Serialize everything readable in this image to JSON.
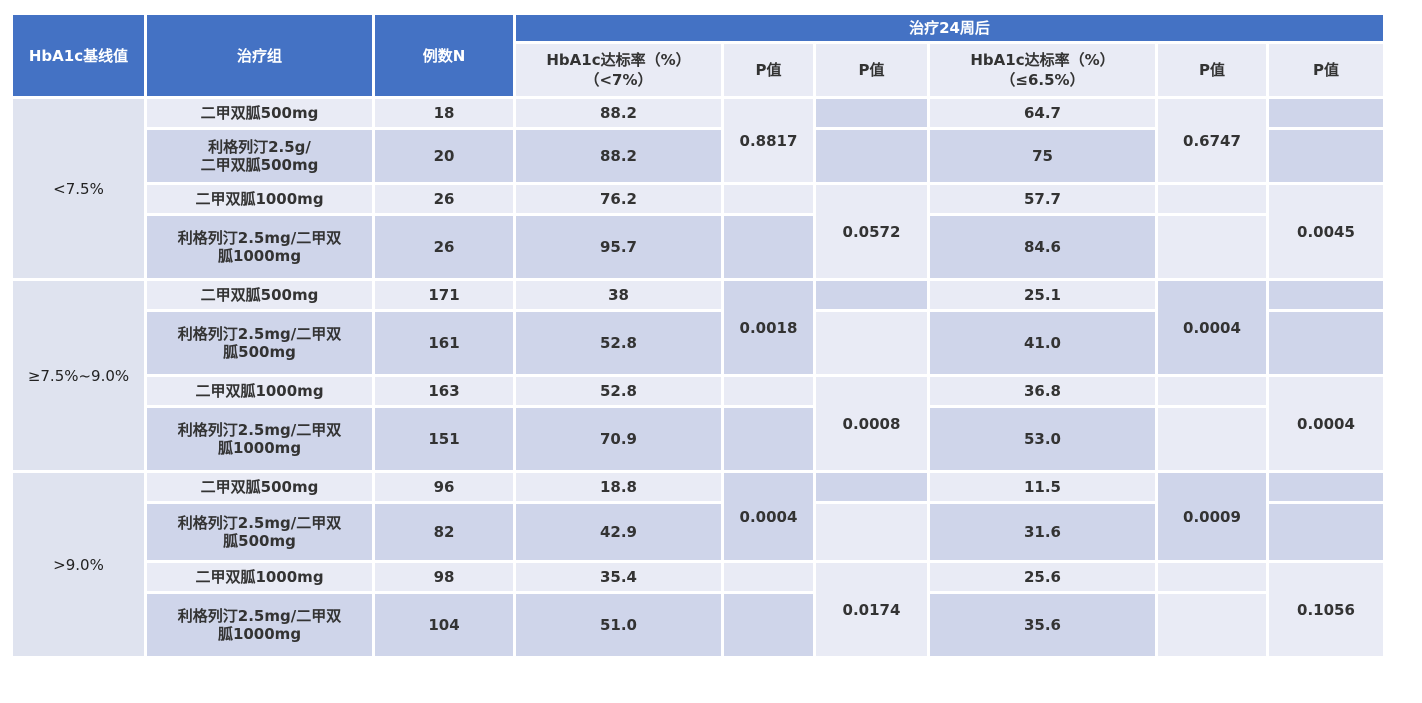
{
  "header": {
    "baseline": "HbA1c基线值",
    "group": "治疗组",
    "n": "例数N",
    "after": "治疗24周后",
    "rate7_line1": "HbA1c达标率（%）",
    "rate7_line2": "（<7%）",
    "p1": "P值",
    "p2": "P值",
    "rate65_line1": "HbA1c达标率（%）",
    "rate65_line2": "（≤6.5%）",
    "p3": "P值",
    "p4": "P值"
  },
  "groups": [
    {
      "baseline": "<7.5%",
      "rows": [
        {
          "treatment": "二甲双胍500mg",
          "n": "18",
          "rate7": "88.2",
          "rate65": "64.7"
        },
        {
          "treatment": "利格列汀2.5g/\n二甲双胍500mg",
          "n": "20",
          "rate7": "88.2",
          "rate65": "75"
        },
        {
          "treatment": "二甲双胍1000mg",
          "n": "26",
          "rate7": "76.2",
          "rate65": "57.7"
        },
        {
          "treatment": "利格列汀2.5mg/二甲双\n胍1000mg",
          "n": "26",
          "rate7": "95.7",
          "rate65": "84.6"
        }
      ],
      "p_a": "0.8817",
      "p_b": "0.0572",
      "p_c": "0.6747",
      "p_d": "0.0045"
    },
    {
      "baseline": "≥7.5%~9.0%",
      "rows": [
        {
          "treatment": "二甲双胍500mg",
          "n": "171",
          "rate7": "38",
          "rate65": "25.1"
        },
        {
          "treatment": "利格列汀2.5mg/二甲双\n胍500mg",
          "n": "161",
          "rate7": "52.8",
          "rate65": "41.0"
        },
        {
          "treatment": "二甲双胍1000mg",
          "n": "163",
          "rate7": "52.8",
          "rate65": "36.8"
        },
        {
          "treatment": "利格列汀2.5mg/二甲双\n胍1000mg",
          "n": "151",
          "rate7": "70.9",
          "rate65": "53.0"
        }
      ],
      "p_a": "0.0018",
      "p_b": "0.0008",
      "p_c": "0.0004",
      "p_d": "0.0004"
    },
    {
      "baseline": ">9.0%",
      "rows": [
        {
          "treatment": "二甲双胍500mg",
          "n": "96",
          "rate7": "18.8",
          "rate65": "11.5"
        },
        {
          "treatment": "利格列汀2.5mg/二甲双\n胍500mg",
          "n": "82",
          "rate7": "42.9",
          "rate65": "31.6"
        },
        {
          "treatment": "二甲双胍1000mg",
          "n": "98",
          "rate7": "35.4",
          "rate65": "25.6"
        },
        {
          "treatment": "利格列汀2.5mg/二甲双\n胍1000mg",
          "n": "104",
          "rate7": "51.0",
          "rate65": "35.6"
        }
      ],
      "p_a": "0.0004",
      "p_b": "0.0174",
      "p_c": "0.0009",
      "p_d": "0.1056"
    }
  ]
}
